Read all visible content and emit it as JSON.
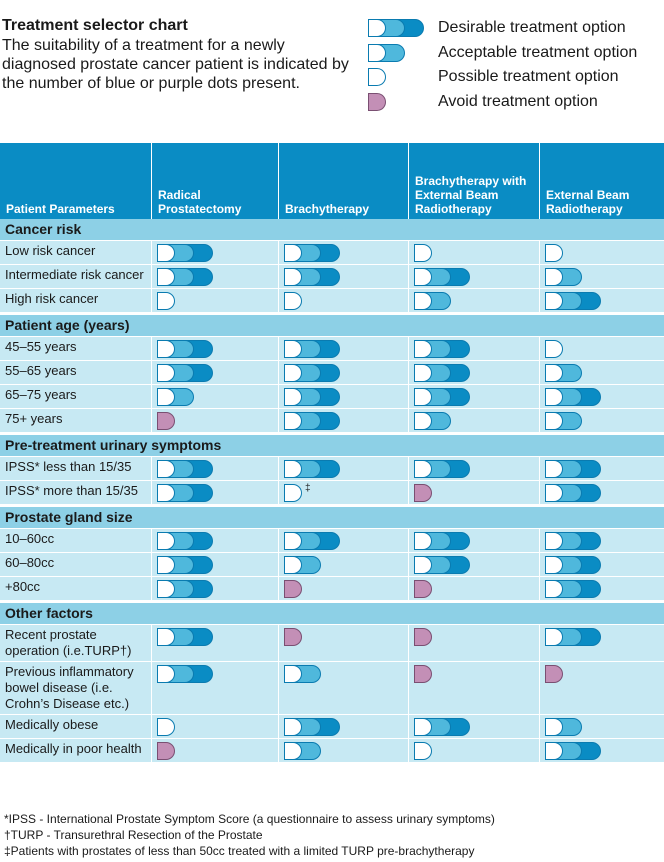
{
  "header": {
    "title": "Treatment selector chart",
    "intro": "The suitability of a treatment for a newly diagnosed prostate cancer patient is indicated by the number of blue or purple dots present."
  },
  "legend": [
    {
      "level": 3,
      "label": "Desirable treatment option"
    },
    {
      "level": 2,
      "label": "Acceptable treatment option"
    },
    {
      "level": 1,
      "label": "Possible treatment option"
    },
    {
      "level": 0,
      "label": "Avoid treatment option"
    }
  ],
  "colors": {
    "header_bg": "#0a8cc4",
    "section_bg": "#8dd0e6",
    "row_bg": "#c7e9f3",
    "pill_border": "#0a7bb0",
    "pill_light": "#4fb8dc",
    "pill_dark": "#0a8cc4",
    "avoid": "#c38fb6"
  },
  "columns": [
    "Patient Parameters",
    "Radical Prostatectomy",
    "Brachytherapy",
    "Brachytherapy with External Beam Radiotherapy",
    "External Beam Radiotherapy"
  ],
  "sections": [
    {
      "title": "Cancer risk",
      "rows": [
        {
          "label": "Low risk cancer",
          "levels": [
            3,
            3,
            1,
            1
          ]
        },
        {
          "label": "Intermediate risk cancer",
          "levels": [
            3,
            3,
            3,
            2
          ]
        },
        {
          "label": "High risk cancer",
          "levels": [
            1,
            1,
            2,
            3
          ]
        }
      ]
    },
    {
      "title": "Patient age (years)",
      "rows": [
        {
          "label": "45–55 years",
          "levels": [
            3,
            3,
            3,
            1
          ]
        },
        {
          "label": "55–65 years",
          "levels": [
            3,
            3,
            3,
            2
          ]
        },
        {
          "label": "65–75 years",
          "levels": [
            2,
            3,
            3,
            3
          ]
        },
        {
          "label": "75+ years",
          "levels": [
            0,
            3,
            2,
            2
          ]
        }
      ]
    },
    {
      "title": "Pre-treatment urinary symptoms",
      "rows": [
        {
          "label": "IPSS* less than 15/35",
          "levels": [
            3,
            3,
            3,
            3
          ]
        },
        {
          "label": "IPSS* more than 15/35",
          "levels": [
            3,
            1,
            0,
            3
          ],
          "notes": [
            "",
            "‡",
            "",
            ""
          ]
        }
      ]
    },
    {
      "title": "Prostate gland size",
      "rows": [
        {
          "label": "10–60cc",
          "levels": [
            3,
            3,
            3,
            3
          ]
        },
        {
          "label": "60–80cc",
          "levels": [
            3,
            2,
            3,
            3
          ]
        },
        {
          "label": "+80cc",
          "levels": [
            3,
            0,
            0,
            3
          ]
        }
      ]
    },
    {
      "title": "Other factors",
      "rows": [
        {
          "label": "Recent prostate operation (i.e.TURP†)",
          "levels": [
            3,
            0,
            0,
            3
          ]
        },
        {
          "label": "Previous inflammatory bowel disease (i.e. Crohn’s Disease etc.)",
          "levels": [
            3,
            2,
            0,
            0
          ]
        },
        {
          "label": "Medically obese",
          "levels": [
            1,
            3,
            3,
            2
          ]
        },
        {
          "label": "Medically in poor health",
          "levels": [
            0,
            2,
            1,
            3
          ]
        }
      ]
    }
  ],
  "footnotes": [
    "*IPSS - International Prostate Symptom Score (a questionnaire to assess urinary symptoms)",
    "†TURP - Transurethral Resection of the Prostate",
    "‡Patients with prostates of less than 50cc treated with a limited TURP pre-brachytherapy"
  ]
}
